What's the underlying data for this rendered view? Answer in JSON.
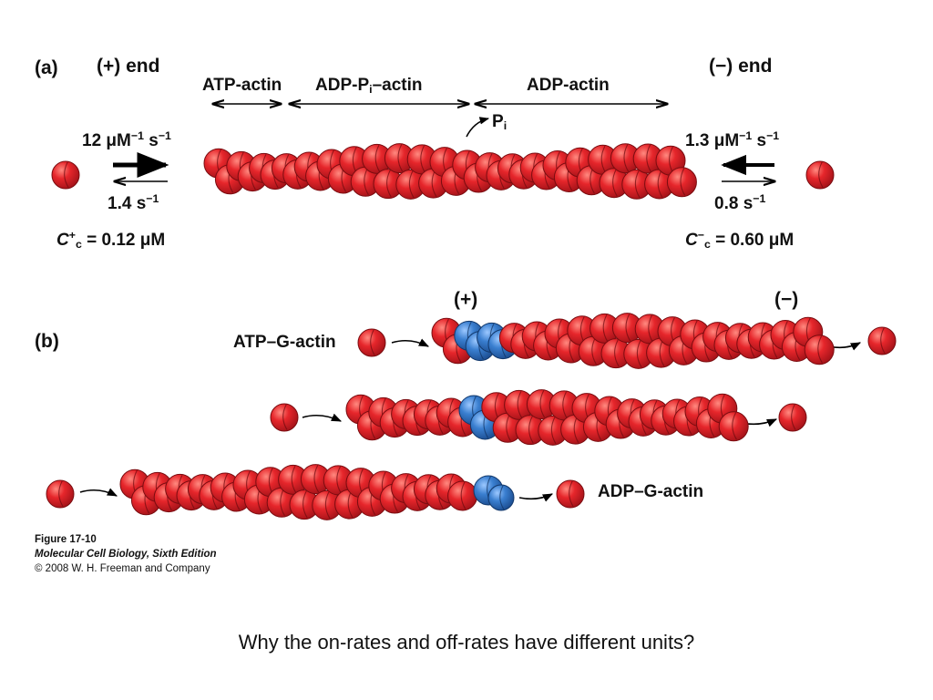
{
  "panel_a": {
    "label": "(a)",
    "plus_end": "(+) end",
    "minus_end": "(−) end",
    "region_atp": "ATP-actin",
    "region_adp_pi_pre": "ADP-P",
    "region_adp_pi_sub": "i",
    "region_adp_pi_post": "–actin",
    "region_adp": "ADP-actin",
    "pi_main": "P",
    "pi_sub": "i",
    "plus_on_rate_pre": "12 μM",
    "plus_on_rate_sup1": "−1",
    "plus_on_rate_mid": " s",
    "plus_on_rate_sup2": "−1",
    "plus_off_rate_pre": "1.4 s",
    "plus_off_rate_sup": "−1",
    "minus_on_rate_pre": "1.3 μM",
    "minus_on_rate_sup1": "−1",
    "minus_on_rate_mid": " s",
    "minus_on_rate_sup2": "−1",
    "minus_off_rate_pre": "0.8 s",
    "minus_off_rate_sup": "−1",
    "cc_plus_c": "C",
    "cc_plus_sup": "+",
    "cc_plus_sub": "c",
    "cc_plus_value": " = 0.12  μM",
    "cc_minus_c": "C",
    "cc_minus_sup": "−",
    "cc_minus_sub": "c",
    "cc_minus_value": " = 0.60  μM"
  },
  "panel_b": {
    "label": "(b)",
    "plus": "(+)",
    "minus": "(−)",
    "atp_g_actin": "ATP–G-actin",
    "adp_g_actin": "ADP–G-actin"
  },
  "caption": {
    "figure": "Figure 17-10",
    "book": "Molecular Cell Biology, Sixth Edition",
    "copyright": "© 2008 W. H. Freeman and Company"
  },
  "question": "Why the on-rates and off-rates have different units?",
  "colors": {
    "monomer_red": "#e0242a",
    "monomer_edge": "#7a0c10",
    "atp_blue": "#3a7fd0",
    "atp_edge": "#12386b",
    "arrow": "#000000"
  }
}
